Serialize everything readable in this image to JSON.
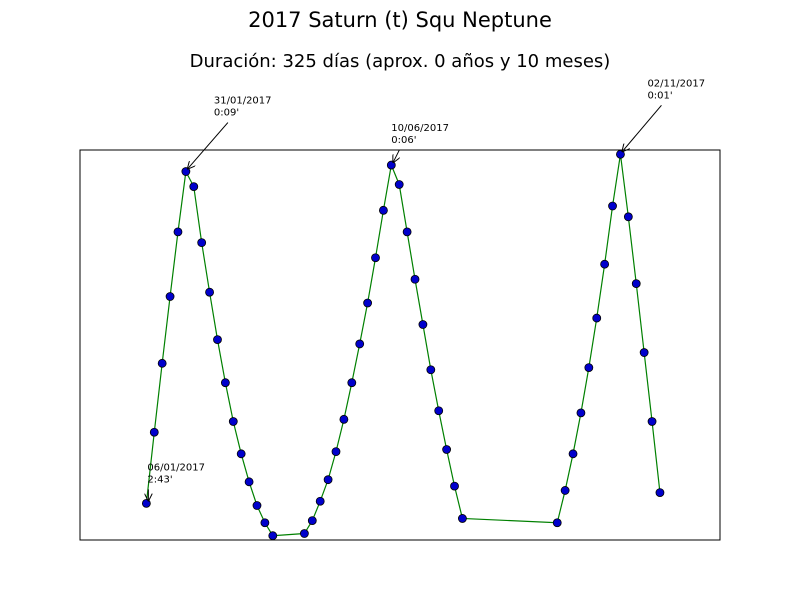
{
  "chart_data": {
    "type": "line",
    "title": "2017 Saturn (t) Squ Neptune",
    "subtitle": "Duración: 325 días (aprox. 0 años y 10 meses)",
    "x": [
      0,
      5,
      10,
      15,
      20,
      25,
      30,
      35,
      40,
      45,
      50,
      55,
      60,
      65,
      70,
      75,
      80,
      100,
      105,
      110,
      115,
      120,
      125,
      130,
      135,
      140,
      145,
      150,
      155,
      160,
      165,
      170,
      175,
      180,
      185,
      190,
      195,
      200,
      260,
      265,
      270,
      275,
      280,
      285,
      290,
      295,
      300,
      305,
      310,
      315,
      320,
      325
    ],
    "series": [
      {
        "color": "#008000",
        "marker_color": "#0000cc",
        "values": [
          163,
          130,
          98,
          67,
          37,
          9,
          16,
          42,
          65,
          87,
          107,
          125,
          140,
          153,
          164,
          172,
          178,
          177,
          171,
          162,
          152,
          139,
          124,
          107,
          89,
          70,
          49,
          27,
          6,
          15,
          37,
          59,
          80,
          101,
          120,
          138,
          155,
          170,
          172,
          157,
          140,
          121,
          100,
          77,
          52,
          25,
          1,
          30,
          61,
          93,
          125,
          158
        ]
      }
    ],
    "xlim": [
      -42,
      363
    ],
    "ylim": [
      180,
      -1
    ],
    "annotations": [
      {
        "x": 0,
        "y": 163,
        "date": "06/01/2017",
        "orb": "2:43'"
      },
      {
        "x": 25,
        "y": 9,
        "date": "31/01/2017",
        "orb": "0:09'"
      },
      {
        "x": 155,
        "y": 6,
        "date": "10/06/2017",
        "orb": "0:06'"
      },
      {
        "x": 300,
        "y": 1,
        "date": "02/11/2017",
        "orb": "0:01'"
      }
    ]
  }
}
